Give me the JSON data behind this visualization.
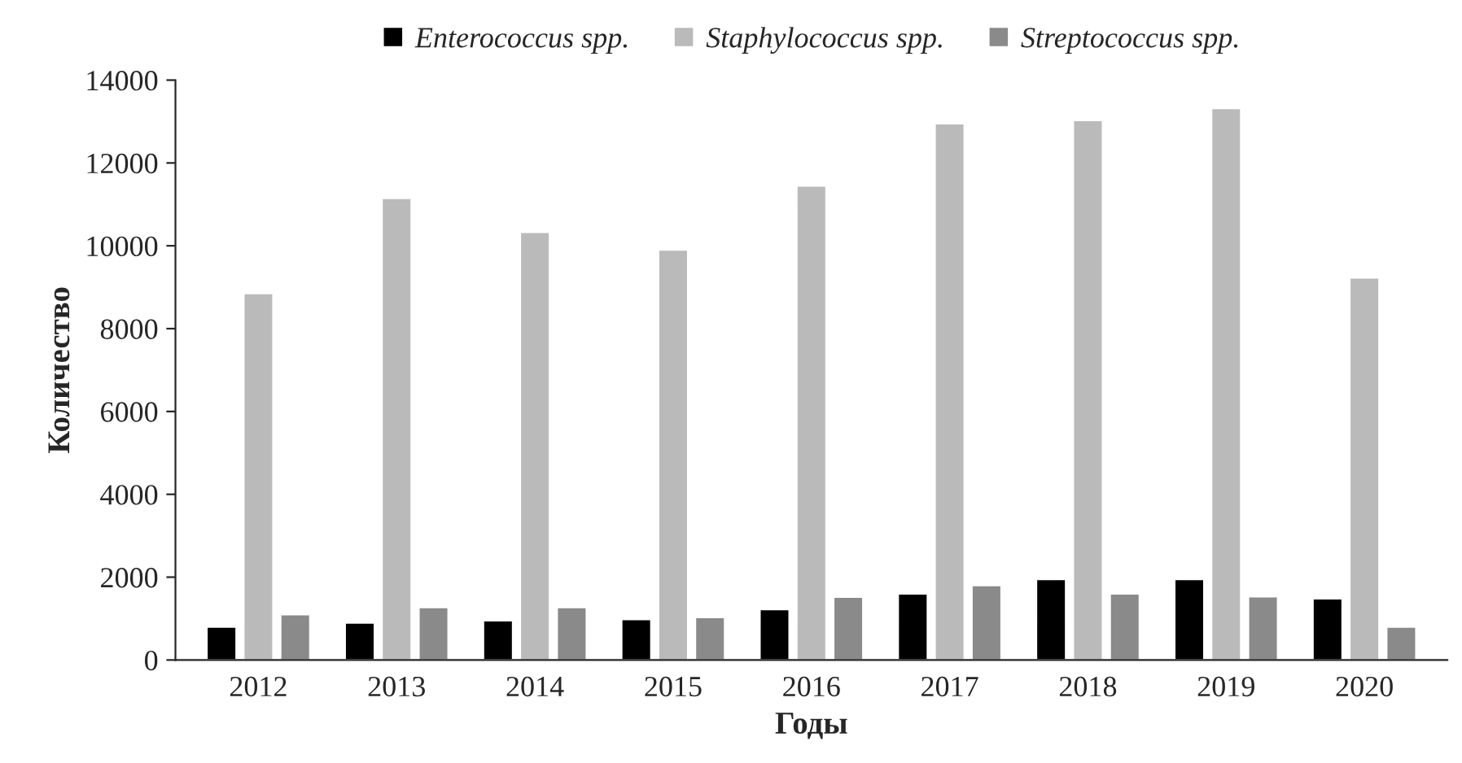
{
  "chart_data": {
    "type": "bar",
    "xlabel": "Годы",
    "ylabel": "Количество",
    "categories": [
      "2012",
      "2013",
      "2014",
      "2015",
      "2016",
      "2017",
      "2018",
      "2019",
      "2020"
    ],
    "series": [
      {
        "name": "Enterococcus spp.",
        "color": "#000000",
        "values": [
          800,
          900,
          950,
          980,
          1220,
          1600,
          1950,
          1950,
          1480
        ]
      },
      {
        "name": "Staphylococcus spp.",
        "color": "#bababa",
        "values": [
          8850,
          11150,
          10330,
          9900,
          11450,
          12950,
          13030,
          13320,
          9230
        ]
      },
      {
        "name": "Streptococcus spp.",
        "color": "#8a8a8a",
        "values": [
          1100,
          1270,
          1270,
          1030,
          1520,
          1800,
          1600,
          1530,
          800
        ]
      }
    ],
    "ylim": [
      0,
      14000
    ],
    "yticks": [
      0,
      2000,
      4000,
      6000,
      8000,
      10000,
      12000,
      14000
    ],
    "grid": false,
    "legend": "top"
  }
}
